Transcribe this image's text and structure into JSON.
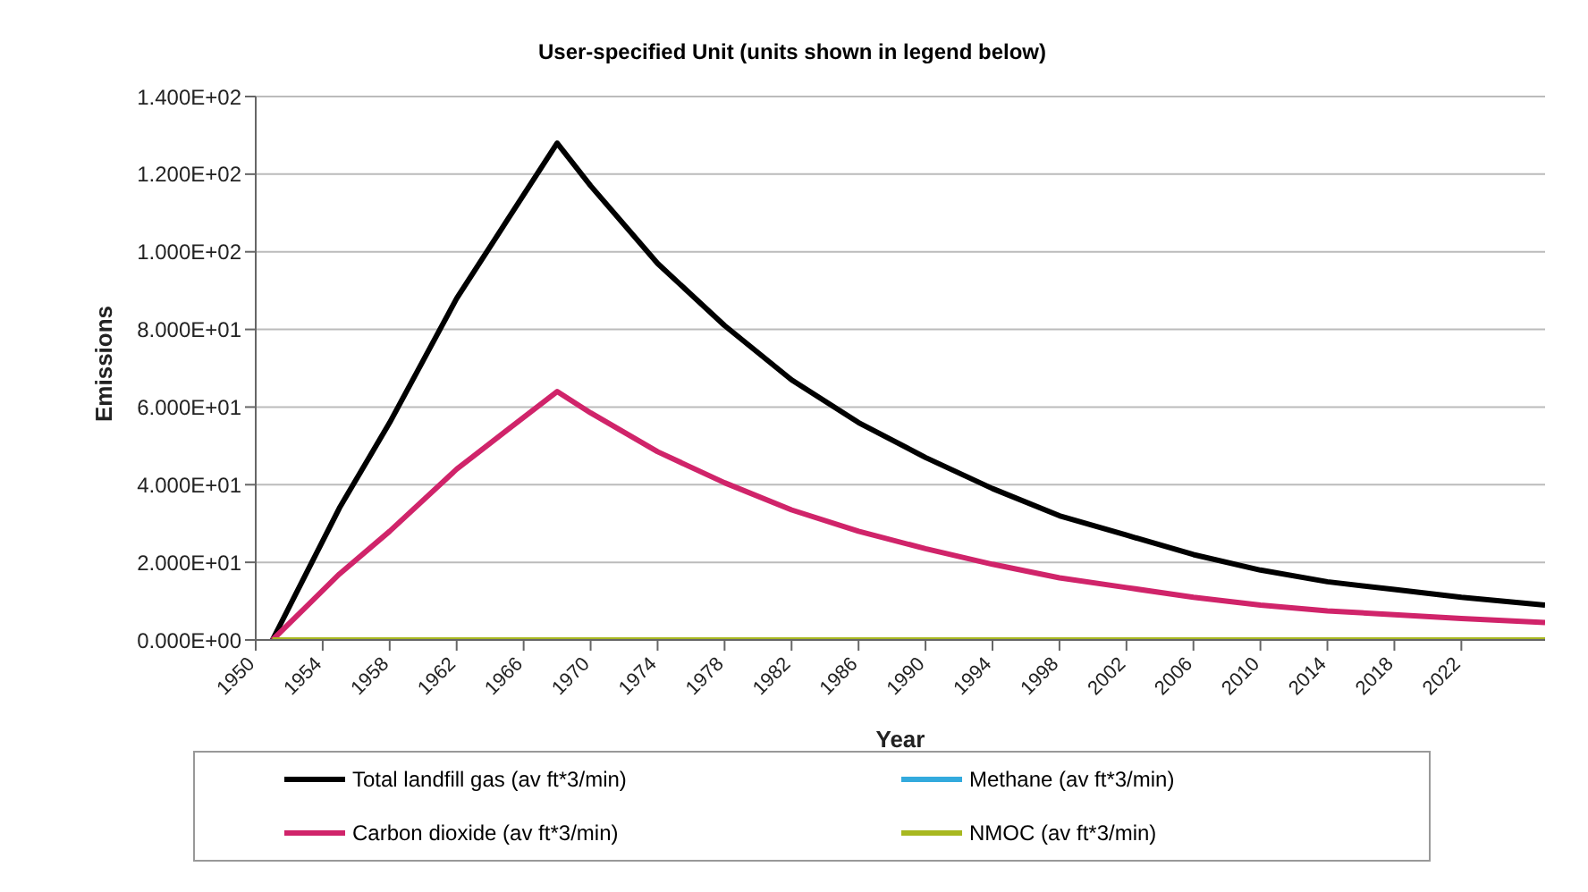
{
  "chart_data": {
    "type": "line",
    "title": "User-specified Unit (units shown in legend below)",
    "xlabel": "Year",
    "ylabel": "Emissions",
    "x": [
      1951,
      1953,
      1955,
      1958,
      1962,
      1965,
      1968,
      1970,
      1974,
      1978,
      1982,
      1986,
      1990,
      1994,
      1998,
      2002,
      2006,
      2010,
      2014,
      2018,
      2022,
      2027
    ],
    "series": [
      {
        "name": "Total landfill gas (av ft*3/min)",
        "color": "#000000",
        "values": [
          0,
          17,
          34,
          56,
          88,
          108,
          128,
          117,
          97,
          81,
          67,
          56,
          47,
          39,
          32,
          27,
          22,
          18,
          15,
          13,
          11,
          9
        ]
      },
      {
        "name": "Methane (av ft*3/min)",
        "color": "#33aadd",
        "values": [
          null,
          null,
          null,
          null,
          null,
          null,
          null,
          null,
          null,
          null,
          null,
          null,
          null,
          null,
          null,
          null,
          null,
          null,
          null,
          null,
          null,
          null
        ]
      },
      {
        "name": "Carbon dioxide (av ft*3/min)",
        "color": "#d0246a",
        "values": [
          0,
          8.5,
          17,
          28,
          44,
          54,
          64,
          58.5,
          48.5,
          40.5,
          33.5,
          28,
          23.5,
          19.5,
          16,
          13.5,
          11,
          9,
          7.5,
          6.5,
          5.5,
          4.5
        ]
      },
      {
        "name": "NMOC (av ft*3/min)",
        "color": "#a8b820",
        "values": [
          0,
          0,
          0,
          0,
          0,
          0,
          0,
          0,
          0,
          0,
          0,
          0,
          0,
          0,
          0,
          0,
          0,
          0,
          0,
          0,
          0,
          0
        ]
      }
    ],
    "xlim": [
      1950,
      2027
    ],
    "xticks": [
      1950,
      1954,
      1958,
      1962,
      1966,
      1970,
      1974,
      1978,
      1982,
      1986,
      1990,
      1994,
      1998,
      2002,
      2006,
      2010,
      2014,
      2018,
      2022
    ],
    "ylim": [
      0,
      140
    ],
    "yticks": [
      {
        "value": 0,
        "label": "0.000E+00"
      },
      {
        "value": 20,
        "label": "2.000E+01"
      },
      {
        "value": 40,
        "label": "4.000E+01"
      },
      {
        "value": 60,
        "label": "6.000E+01"
      },
      {
        "value": 80,
        "label": "8.000E+01"
      },
      {
        "value": 100,
        "label": "1.000E+02"
      },
      {
        "value": 120,
        "label": "1.200E+02"
      },
      {
        "value": 140,
        "label": "1.400E+02"
      }
    ],
    "grid": "y",
    "legend": "bottom",
    "marker": "none",
    "line_style": "solid"
  }
}
